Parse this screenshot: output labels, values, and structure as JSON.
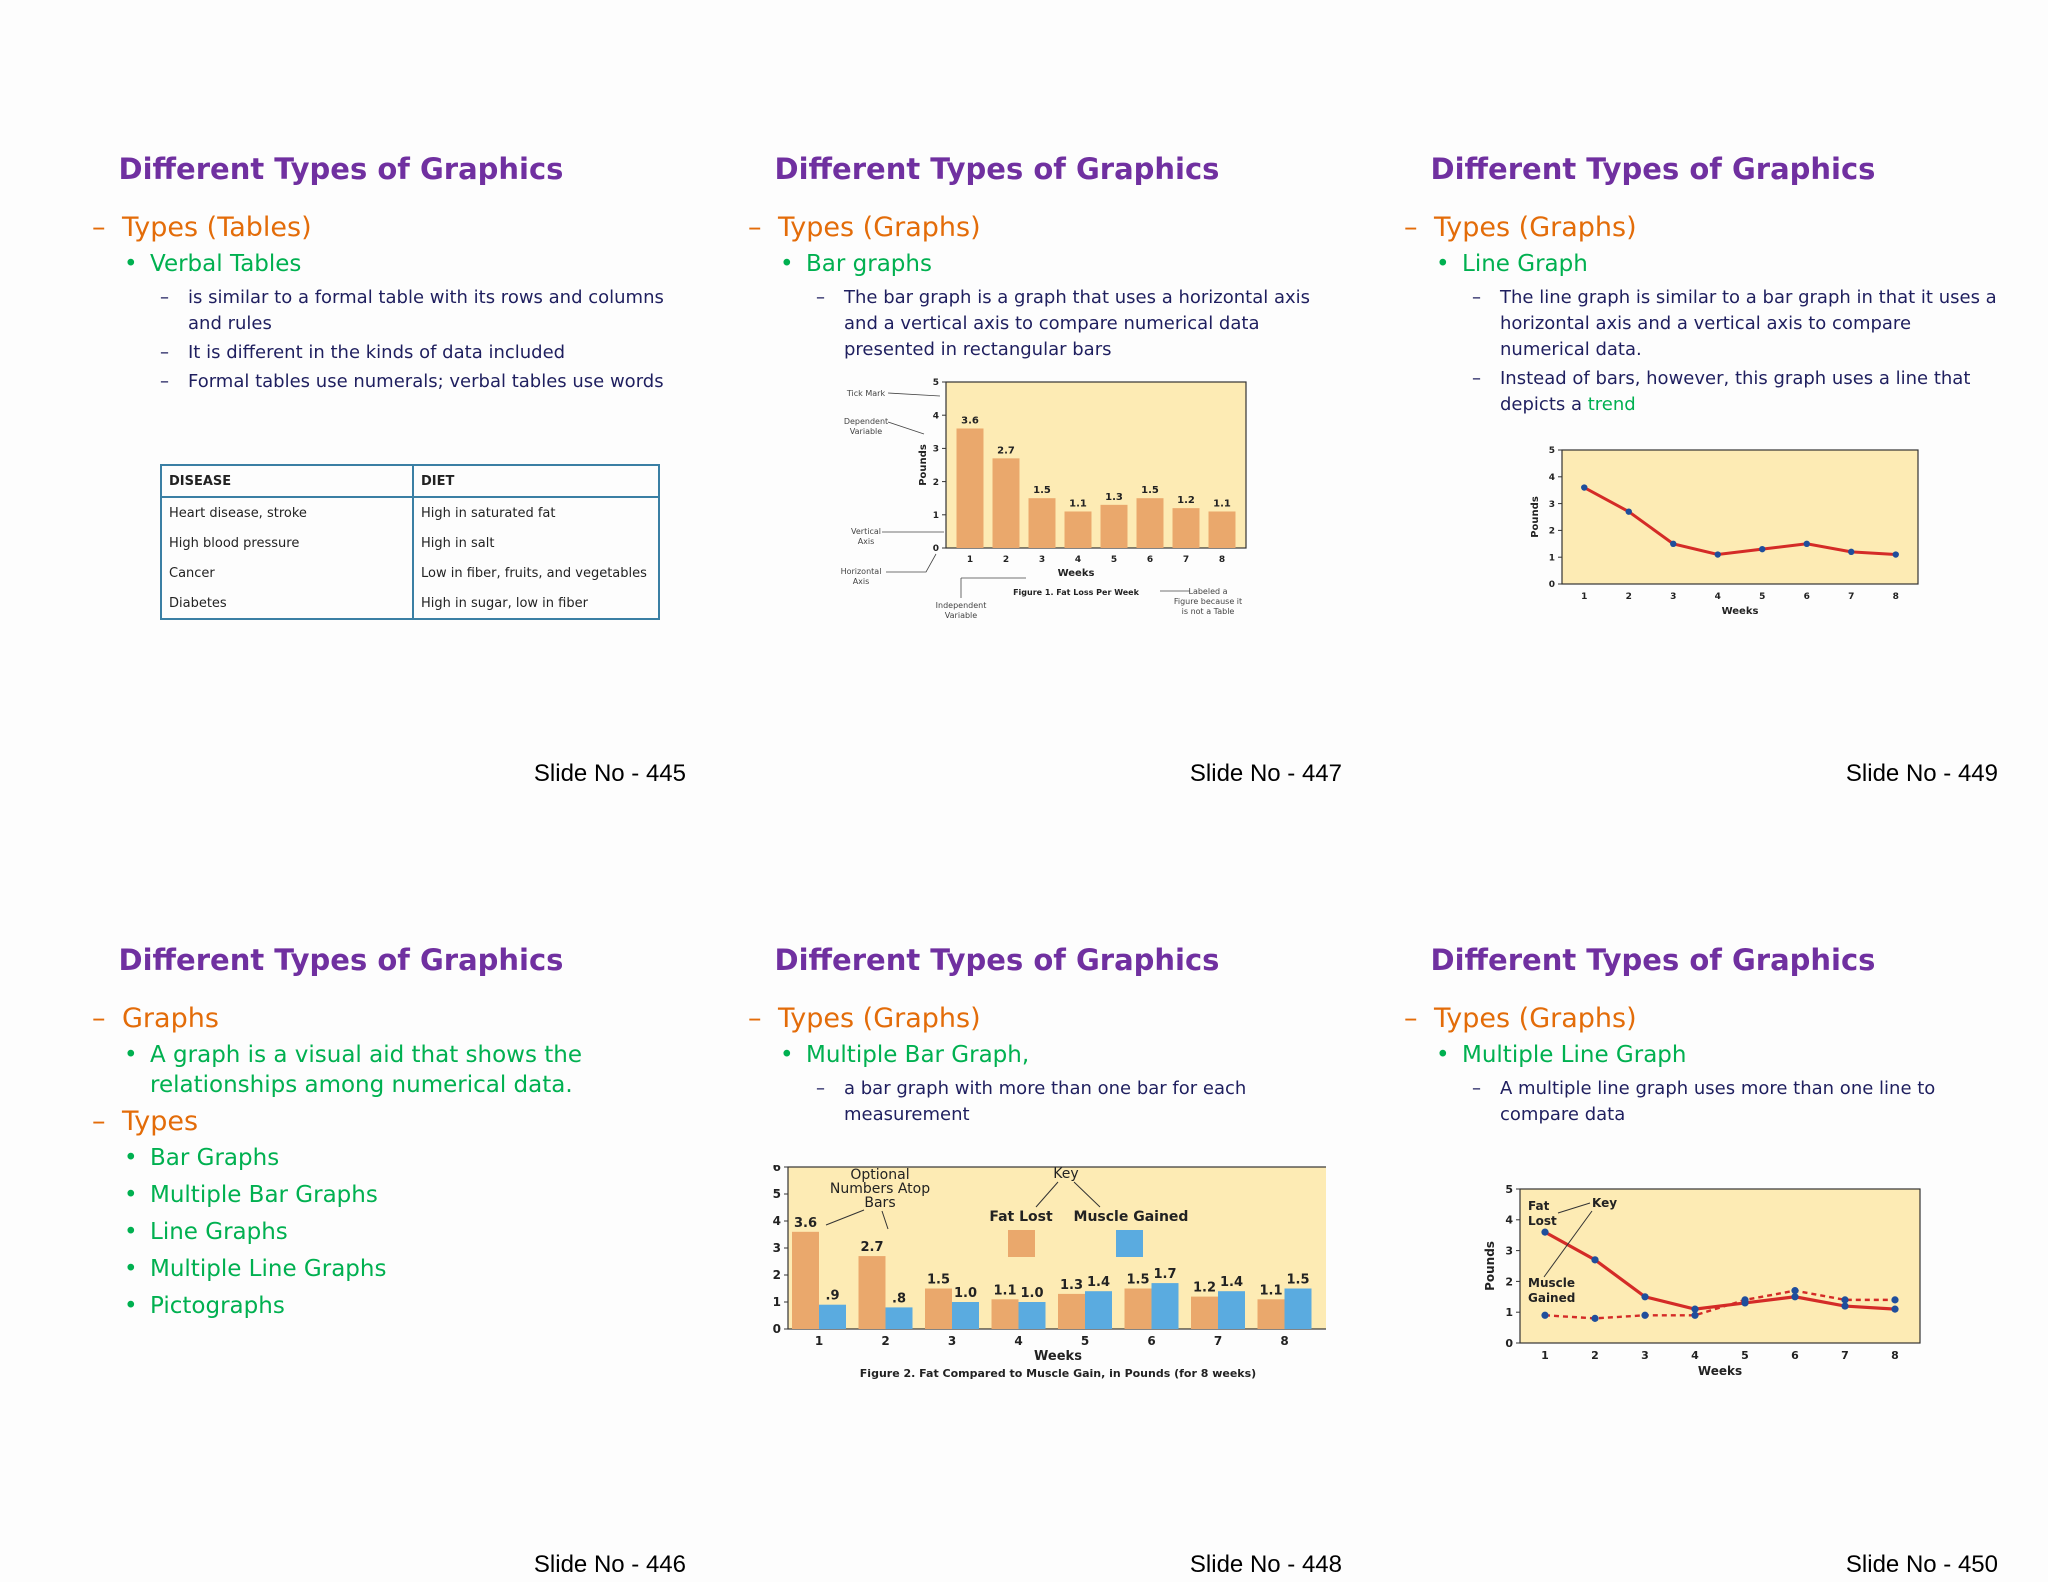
{
  "slides": [
    {
      "title": "Different Types of Graphics",
      "l1": "Types (Tables)",
      "l2": "Verbal Tables",
      "bullets": [
        "is similar to a formal table with its rows and columns and rules",
        "It is different in the kinds of data included",
        "Formal tables use numerals; verbal tables use words"
      ],
      "table": {
        "headers": [
          "DISEASE",
          "DIET"
        ],
        "rows": [
          [
            "Heart disease, stroke",
            "High in saturated fat"
          ],
          [
            "High blood pressure",
            "High in salt"
          ],
          [
            "Cancer",
            "Low in fiber, fruits, and vegetables"
          ],
          [
            "Diabetes",
            "High in sugar, low in fiber"
          ]
        ]
      },
      "slide_no": "Slide No - 445"
    },
    {
      "title": "Different Types of Graphics",
      "l1": "Types (Graphs)",
      "l2": "Bar graphs",
      "bullet": "The bar graph is a graph that uses a horizontal axis and a vertical axis to compare numerical data presented in rectangular bars",
      "annotations": {
        "tick_mark": "Tick Mark",
        "dependent_1": "Dependent",
        "dependent_2": "Variable",
        "vertical_1": "Vertical",
        "vertical_2": "Axis",
        "horizontal_1": "Horizontal",
        "horizontal_2": "Axis",
        "independent_1": "Independent",
        "independent_2": "Variable",
        "labeled_1": "Labeled a",
        "labeled_2": "Figure because it",
        "labeled_3": "is not a Table"
      },
      "slide_no": "Slide No - 447"
    },
    {
      "title": "Different Types of Graphics",
      "l1": "Types (Graphs)",
      "l2": "Line Graph",
      "bullet1": "The line graph is similar to a bar graph in that it uses a horizontal axis and a vertical axis to compare numerical data.",
      "bullet2_a": "Instead of bars, however, this graph uses a line that depicts a ",
      "bullet2_b": "trend",
      "slide_no": "Slide No - 449"
    },
    {
      "title": "Different Types of Graphics",
      "l1a": "Graphs",
      "l2a": "A graph is a visual aid that shows the relationships among numerical data.",
      "l1b": "Types",
      "types": [
        "Bar Graphs",
        "Multiple Bar Graphs",
        "Line Graphs",
        "Multiple Line Graphs",
        "Pictographs"
      ],
      "slide_no": "Slide No - 446"
    },
    {
      "title": "Different Types of Graphics",
      "l1": "Types (Graphs)",
      "l2": "Multiple Bar Graph,",
      "bullet": "a bar graph with more than one bar for each measurement",
      "annotations": {
        "optional_1": "Optional",
        "optional_2": "Numbers Atop",
        "optional_3": "Bars",
        "key": "Key"
      },
      "slide_no": "Slide No - 448"
    },
    {
      "title": "Different Types of Graphics",
      "l1": "Types (Graphs)",
      "l2": "Multiple Line Graph",
      "bullet": "A multiple line graph uses more than one line to compare data",
      "annotations": {
        "fat_1": "Fat",
        "fat_2": "Lost",
        "key": "Key",
        "muscle_1": "Muscle",
        "muscle_2": "Gained"
      },
      "slide_no": "Slide No - 450"
    }
  ],
  "chart_data": [
    {
      "type": "bar",
      "categories": [
        "1",
        "2",
        "3",
        "4",
        "5",
        "6",
        "7",
        "8"
      ],
      "values": [
        3.6,
        2.7,
        1.5,
        1.1,
        1.3,
        1.5,
        1.2,
        1.1
      ],
      "value_labels": [
        "3.6",
        "2.7",
        "1.5",
        "1.1",
        "1.3",
        "1.5",
        "1.2",
        "1.1"
      ],
      "title": "Figure 1. Fat Loss Per Week",
      "xlabel": "Weeks",
      "ylabel": "Pounds",
      "ylim": [
        0,
        5
      ],
      "yticks": [
        "0",
        "1",
        "2",
        "3",
        "4",
        "5"
      ],
      "colors": {
        "bar": "#eaa86c",
        "plot_bg": "#fdebb4",
        "axis": "#333333"
      }
    },
    {
      "type": "line",
      "x": [
        "1",
        "2",
        "3",
        "4",
        "5",
        "6",
        "7",
        "8"
      ],
      "values": [
        3.6,
        2.7,
        1.5,
        1.1,
        1.3,
        1.5,
        1.2,
        1.1
      ],
      "xlabel": "Weeks",
      "ylabel": "Pounds",
      "ylim": [
        0,
        5
      ],
      "yticks": [
        "0",
        "1",
        "2",
        "3",
        "4",
        "5"
      ],
      "colors": {
        "line": "#d42b27",
        "point": "#1f4e9c",
        "plot_bg": "#fdebb4"
      }
    },
    {
      "type": "bar",
      "categories": [
        "1",
        "2",
        "3",
        "4",
        "5",
        "6",
        "7",
        "8"
      ],
      "series": [
        {
          "name": "Fat Lost",
          "values": [
            3.6,
            2.7,
            1.5,
            1.1,
            1.3,
            1.5,
            1.2,
            1.1
          ],
          "value_labels": [
            "3.6",
            "2.7",
            "1.5",
            "1.1",
            "1.3",
            "1.5",
            "1.2",
            "1.1"
          ],
          "color": "#eaa86c"
        },
        {
          "name": "Muscle Gained",
          "values": [
            0.9,
            0.8,
            1.0,
            1.0,
            1.4,
            1.7,
            1.4,
            1.5
          ],
          "value_labels": [
            ".9",
            ".8",
            "1.0",
            "1.0",
            "1.4",
            "1.7",
            "1.4",
            "1.5"
          ],
          "color": "#5aabe0"
        }
      ],
      "title": "Figure 2. Fat Compared to Muscle Gain, in Pounds (for 8 weeks)",
      "xlabel": "Weeks",
      "ylabel": "",
      "ylim": [
        0,
        6
      ],
      "yticks": [
        "0",
        "1",
        "2",
        "3",
        "4",
        "5",
        "6"
      ],
      "legend": "top-center",
      "colors": {
        "plot_bg": "#fdebb4"
      }
    },
    {
      "type": "line",
      "x": [
        "1",
        "2",
        "3",
        "4",
        "5",
        "6",
        "7",
        "8"
      ],
      "series": [
        {
          "name": "Fat Lost",
          "values": [
            3.6,
            2.7,
            1.5,
            1.1,
            1.3,
            1.5,
            1.2,
            1.1
          ],
          "color": "#d42b27",
          "style": "solid"
        },
        {
          "name": "Muscle Gained",
          "values": [
            0.9,
            0.8,
            0.9,
            0.9,
            1.4,
            1.7,
            1.4,
            1.4
          ],
          "color": "#d42b27",
          "style": "dashed"
        }
      ],
      "xlabel": "Weeks",
      "ylabel": "Pounds",
      "ylim": [
        0,
        5
      ],
      "yticks": [
        "0",
        "1",
        "2",
        "3",
        "4",
        "5"
      ],
      "colors": {
        "point": "#1f4e9c",
        "plot_bg": "#fdebb4"
      }
    }
  ]
}
